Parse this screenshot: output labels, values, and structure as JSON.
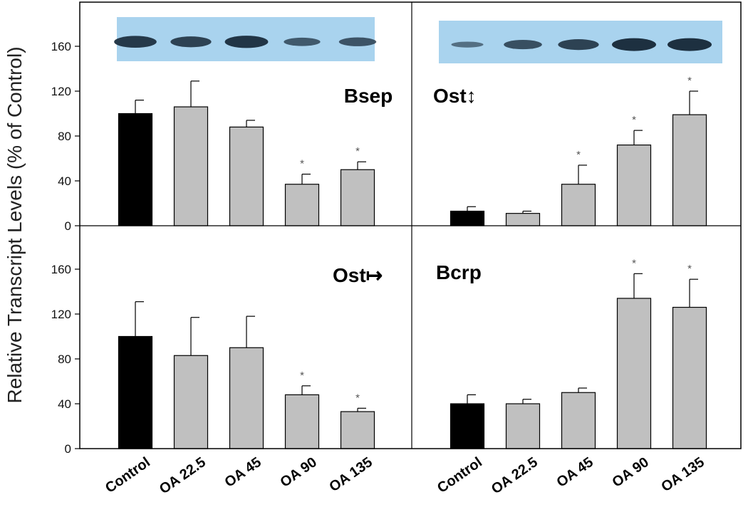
{
  "y_axis_title": "Relative Transcript Levels (% of Control)",
  "colors": {
    "control": "#000000",
    "treated": "#c0c0c0",
    "blot_bg": "#a9d3ee",
    "band": "#1d3040"
  },
  "chart_data": [
    {
      "type": "bar",
      "panel": "top-left",
      "title": "Bsep",
      "categories": [
        "Control",
        "OA 22.5",
        "OA 45",
        "OA 90",
        "OA 135"
      ],
      "values": [
        100,
        106,
        88,
        37,
        50
      ],
      "errors": [
        12,
        23,
        6,
        9,
        7
      ],
      "significant": [
        false,
        false,
        false,
        true,
        true
      ],
      "ylim": [
        0,
        190
      ],
      "yticks": [
        0,
        40,
        80,
        120,
        160
      ],
      "western_blot": {
        "band_intensity": [
          0.9,
          0.8,
          0.95,
          0.55,
          0.6
        ]
      }
    },
    {
      "type": "bar",
      "panel": "top-right",
      "title": "Ost↕",
      "categories": [
        "Control",
        "OA 22.5",
        "OA 45",
        "OA 90",
        "OA 135"
      ],
      "values": [
        13,
        11,
        37,
        72,
        99
      ],
      "errors": [
        4,
        2,
        17,
        13,
        21
      ],
      "significant": [
        false,
        false,
        true,
        true,
        true
      ],
      "ylim": [
        0,
        190
      ],
      "western_blot": {
        "band_intensity": [
          0.3,
          0.65,
          0.8,
          1.0,
          1.0
        ]
      }
    },
    {
      "type": "bar",
      "panel": "bottom-left",
      "title": "Ost↦",
      "categories": [
        "Control",
        "OA 22.5",
        "OA 45",
        "OA 90",
        "OA 135"
      ],
      "values": [
        100,
        83,
        90,
        48,
        33
      ],
      "errors": [
        31,
        34,
        28,
        8,
        3
      ],
      "significant": [
        false,
        false,
        false,
        true,
        true
      ],
      "ylim": [
        0,
        190
      ],
      "yticks": [
        0,
        40,
        80,
        120,
        160
      ]
    },
    {
      "type": "bar",
      "panel": "bottom-right",
      "title": "Bcrp",
      "categories": [
        "Control",
        "OA 22.5",
        "OA 45",
        "OA 90",
        "OA 135"
      ],
      "values": [
        40,
        40,
        50,
        134,
        126
      ],
      "errors": [
        8,
        4,
        4,
        22,
        25
      ],
      "significant": [
        false,
        false,
        false,
        true,
        true
      ],
      "ylim": [
        0,
        190
      ]
    }
  ],
  "significance_mark": "*"
}
